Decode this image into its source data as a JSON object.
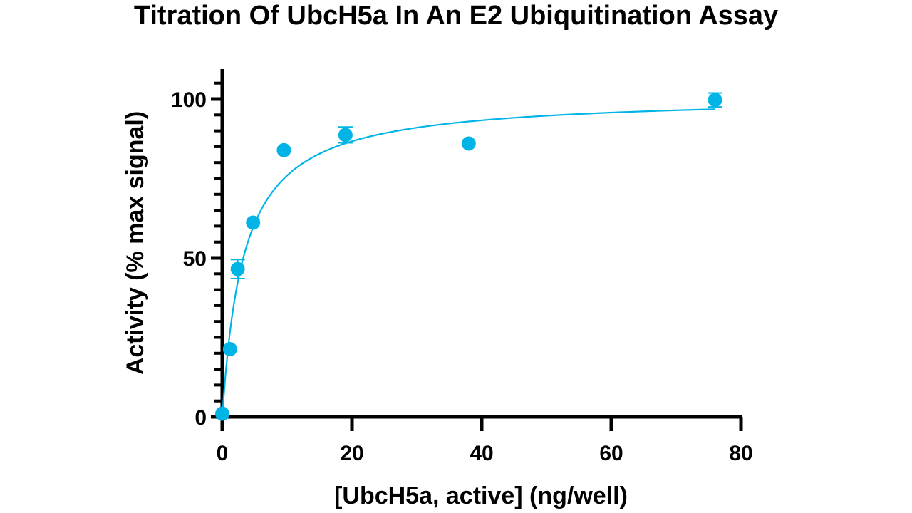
{
  "chart_data": {
    "type": "scatter",
    "title": "Titration Of UbcH5a In An E2 Ubiquitination Assay",
    "xlabel": "[UbcH5a, active] (ng/well)",
    "ylabel": "Activity (% max signal)",
    "xlim": [
      0,
      80
    ],
    "ylim": [
      0,
      108
    ],
    "x_ticks": [
      0,
      20,
      40,
      60,
      80
    ],
    "y_ticks": [
      0,
      50,
      100
    ],
    "grid": false,
    "legend": "none",
    "color": "#00b4e6",
    "points": [
      {
        "x": 0,
        "y": 1,
        "err": 0
      },
      {
        "x": 1.19,
        "y": 21.3,
        "err": 0
      },
      {
        "x": 2.38,
        "y": 46.5,
        "err": 3
      },
      {
        "x": 4.75,
        "y": 61.1,
        "err": 0
      },
      {
        "x": 9.5,
        "y": 83.9,
        "err": 0
      },
      {
        "x": 19,
        "y": 88.7,
        "err": 2.5
      },
      {
        "x": 38,
        "y": 86,
        "err": 0
      },
      {
        "x": 76,
        "y": 99.7,
        "err": 2.2
      }
    ],
    "fit": {
      "model": "hyperbolic",
      "ymax": 101,
      "k": 3.3
    }
  }
}
